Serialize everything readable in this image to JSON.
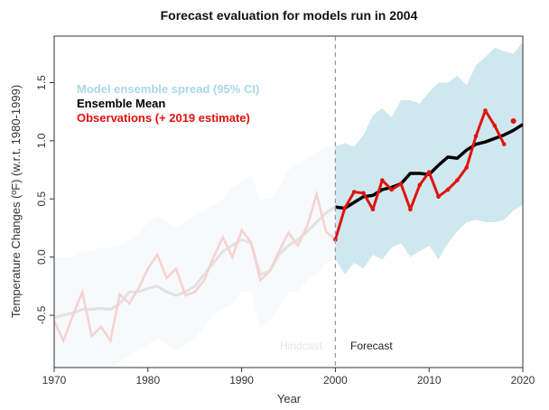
{
  "chart_data": {
    "type": "line",
    "title": "Forecast evaluation for models run in 2004",
    "xlabel": "Year",
    "ylabel": "Temperature Changes (ºF) (w.r.t. 1980-1999)",
    "xlim": [
      1970,
      2020
    ],
    "ylim": [
      -0.95,
      1.9
    ],
    "xticks": [
      1970,
      1980,
      1990,
      2000,
      2010,
      2020
    ],
    "yticks": [
      -0.5,
      0.0,
      0.5,
      1.0,
      1.5
    ],
    "ytick_labels": [
      "-0.5",
      "0.0",
      "0.5",
      "1.0",
      "1.5"
    ],
    "forecast_start": 2000,
    "region_labels": {
      "hindcast": "Hindcast",
      "forecast": "Forecast"
    },
    "legend": {
      "position": "top-left",
      "entries": [
        {
          "label": "Model ensemble spread (95% CI)",
          "color": "#a9d8e8"
        },
        {
          "label": "Ensemble Mean",
          "color": "#000000"
        },
        {
          "label": "Observations (+ 2019 estimate)",
          "color": "#e0120f"
        }
      ]
    },
    "colors": {
      "spread": "#cfe8f0",
      "mean": "#000000",
      "observations": "#e0120f",
      "hindcast_observations": "#f6d2d2",
      "hindcast_mean": "#e2e2e2",
      "hindcast_spread": "#f8f9fa"
    },
    "series": [
      {
        "name": "Model ensemble spread (95% CI)",
        "x": [
          2000,
          2001,
          2002,
          2003,
          2004,
          2005,
          2006,
          2007,
          2008,
          2009,
          2010,
          2011,
          2012,
          2013,
          2014,
          2015,
          2016,
          2017,
          2018,
          2019,
          2020
        ],
        "upper": [
          0.95,
          0.98,
          0.95,
          1.05,
          1.22,
          1.28,
          1.2,
          1.35,
          1.35,
          1.32,
          1.42,
          1.5,
          1.5,
          1.56,
          1.48,
          1.65,
          1.72,
          1.8,
          1.77,
          1.75,
          1.85
        ],
        "lower": [
          -0.02,
          -0.15,
          -0.05,
          -0.1,
          0.02,
          -0.02,
          0.08,
          0.12,
          0.0,
          0.05,
          0.1,
          -0.02,
          0.12,
          0.22,
          0.3,
          0.32,
          0.3,
          0.3,
          0.32,
          0.4,
          0.45
        ]
      },
      {
        "name": "Ensemble Mean",
        "x": [
          2000,
          2001,
          2002,
          2003,
          2004,
          2005,
          2006,
          2007,
          2008,
          2009,
          2010,
          2011,
          2012,
          2013,
          2014,
          2015,
          2016,
          2017,
          2018,
          2019,
          2020
        ],
        "values": [
          0.43,
          0.42,
          0.47,
          0.52,
          0.53,
          0.58,
          0.6,
          0.63,
          0.72,
          0.72,
          0.71,
          0.79,
          0.86,
          0.85,
          0.92,
          0.97,
          0.99,
          1.02,
          1.05,
          1.09,
          1.14
        ]
      },
      {
        "name": "Observations (+ 2019 estimate)",
        "x": [
          2000,
          2001,
          2002,
          2003,
          2004,
          2005,
          2006,
          2007,
          2008,
          2009,
          2010,
          2011,
          2012,
          2013,
          2014,
          2015,
          2016,
          2017,
          2018,
          2019
        ],
        "values": [
          0.15,
          0.42,
          0.56,
          0.55,
          0.41,
          0.66,
          0.58,
          0.63,
          0.41,
          0.62,
          0.73,
          0.52,
          0.58,
          0.66,
          0.77,
          1.04,
          1.26,
          1.13,
          0.97,
          1.17
        ]
      }
    ],
    "hindcast": {
      "x": [
        1970,
        1971,
        1972,
        1973,
        1974,
        1975,
        1976,
        1977,
        1978,
        1979,
        1980,
        1981,
        1982,
        1983,
        1984,
        1985,
        1986,
        1987,
        1988,
        1989,
        1990,
        1991,
        1992,
        1993,
        1994,
        1995,
        1996,
        1997,
        1998,
        1999,
        2000
      ],
      "observations": [
        -0.55,
        -0.72,
        -0.5,
        -0.3,
        -0.68,
        -0.6,
        -0.72,
        -0.32,
        -0.4,
        -0.27,
        -0.1,
        0.02,
        -0.18,
        -0.1,
        -0.33,
        -0.3,
        -0.2,
        0.0,
        0.17,
        0.0,
        0.23,
        0.13,
        -0.2,
        -0.12,
        0.05,
        0.21,
        0.1,
        0.27,
        0.54,
        0.22,
        0.15
      ],
      "mean": [
        -0.52,
        -0.5,
        -0.48,
        -0.45,
        -0.45,
        -0.44,
        -0.45,
        -0.4,
        -0.3,
        -0.3,
        -0.27,
        -0.25,
        -0.3,
        -0.33,
        -0.3,
        -0.25,
        -0.15,
        -0.05,
        0.05,
        0.1,
        0.15,
        0.12,
        -0.15,
        -0.12,
        0.02,
        0.1,
        0.15,
        0.22,
        0.3,
        0.38,
        0.43
      ],
      "spread_upper": [
        0.0,
        0.0,
        0.0,
        0.05,
        0.05,
        0.08,
        0.08,
        0.1,
        0.15,
        0.2,
        0.3,
        0.35,
        0.3,
        0.25,
        0.3,
        0.35,
        0.4,
        0.45,
        0.5,
        0.6,
        0.65,
        0.7,
        0.5,
        0.5,
        0.6,
        0.75,
        0.8,
        0.85,
        0.9,
        0.95,
        0.95
      ],
      "spread_lower": [
        -0.95,
        -0.95,
        -0.95,
        -0.95,
        -0.95,
        -0.95,
        -0.95,
        -0.9,
        -0.85,
        -0.8,
        -0.75,
        -0.7,
        -0.75,
        -0.8,
        -0.75,
        -0.7,
        -0.6,
        -0.5,
        -0.45,
        -0.4,
        -0.3,
        -0.3,
        -0.6,
        -0.55,
        -0.45,
        -0.3,
        -0.3,
        -0.2,
        -0.15,
        -0.05,
        -0.02
      ]
    }
  }
}
